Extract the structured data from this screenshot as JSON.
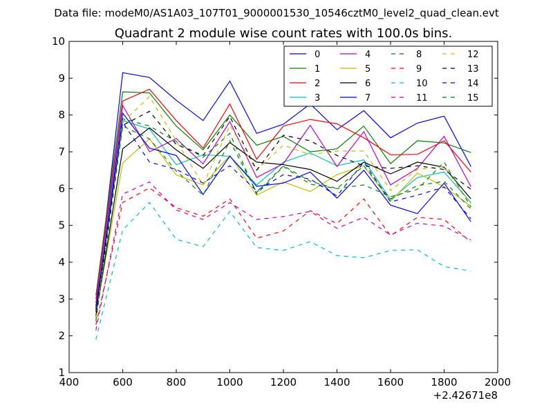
{
  "chart_data": {
    "type": "line",
    "suptitle": "Data file: modeM0/AS1A03_107T01_9000001530_10546cztM0_level2_quad_clean.evt",
    "title": "Quadrant 2 module wise count rates with 100.0s bins.",
    "xlabel": "",
    "ylabel": "",
    "x_offset_label": "+2.42671e8",
    "xlim": [
      400,
      2000
    ],
    "ylim": [
      1,
      10
    ],
    "xticks": [
      400,
      600,
      800,
      1000,
      1200,
      1400,
      1600,
      1800,
      2000
    ],
    "yticks": [
      1,
      2,
      3,
      4,
      5,
      6,
      7,
      8,
      9,
      10
    ],
    "grid": false,
    "legend_position": "top-right",
    "x": [
      500,
      600,
      700,
      800,
      900,
      1000,
      1100,
      1200,
      1300,
      1400,
      1500,
      1600,
      1700,
      1800,
      1900
    ],
    "series": [
      {
        "name": "0",
        "color": "#0000ff",
        "style": "solid",
        "values": [
          2.8,
          9.15,
          9.02,
          8.4,
          7.85,
          8.92,
          7.5,
          7.75,
          8.3,
          7.6,
          8.12,
          7.38,
          7.78,
          7.97,
          6.6
        ]
      },
      {
        "name": "1",
        "color": "#008000",
        "style": "solid",
        "values": [
          3.1,
          8.63,
          8.6,
          7.7,
          7.05,
          8.0,
          7.18,
          7.42,
          7.0,
          7.08,
          7.7,
          6.68,
          7.3,
          7.24,
          6.98
        ]
      },
      {
        "name": "2",
        "color": "#ff0000",
        "style": "solid",
        "values": [
          3.0,
          8.38,
          8.7,
          7.85,
          7.1,
          8.3,
          6.8,
          7.7,
          7.88,
          7.76,
          7.38,
          6.92,
          6.93,
          7.3,
          6.45
        ]
      },
      {
        "name": "3",
        "color": "#00bfbf",
        "style": "solid",
        "values": [
          2.7,
          7.85,
          7.62,
          6.65,
          6.92,
          6.88,
          6.1,
          6.72,
          6.97,
          6.62,
          6.78,
          5.7,
          6.3,
          6.45,
          5.62
        ]
      },
      {
        "name": "4",
        "color": "#bf00bf",
        "style": "solid",
        "values": [
          2.9,
          8.26,
          7.0,
          7.36,
          6.67,
          7.82,
          6.3,
          6.68,
          7.72,
          6.6,
          7.55,
          6.1,
          6.55,
          7.42,
          6.05
        ]
      },
      {
        "name": "5",
        "color": "#bfbf00",
        "style": "solid",
        "values": [
          2.6,
          6.7,
          7.35,
          6.37,
          6.1,
          6.9,
          5.82,
          6.18,
          5.92,
          6.38,
          6.62,
          5.65,
          6.42,
          6.05,
          5.52
        ]
      },
      {
        "name": "6",
        "color": "#000000",
        "style": "solid",
        "values": [
          2.55,
          7.08,
          7.65,
          7.05,
          6.55,
          7.25,
          6.72,
          6.65,
          6.52,
          6.2,
          6.72,
          6.4,
          6.72,
          6.58,
          5.72
        ]
      },
      {
        "name": "7",
        "color": "#0000ff",
        "style": "solid",
        "values": [
          2.7,
          8.05,
          7.1,
          6.9,
          5.84,
          6.88,
          6.06,
          6.15,
          6.45,
          5.74,
          6.5,
          5.55,
          5.32,
          6.15,
          5.1
        ]
      },
      {
        "name": "8",
        "color": "#008000",
        "style": "dashed",
        "values": [
          2.5,
          7.9,
          7.7,
          7.28,
          6.85,
          7.5,
          5.85,
          6.6,
          6.12,
          6.0,
          6.1,
          5.78,
          5.98,
          6.72,
          5.5
        ]
      },
      {
        "name": "9",
        "color": "#ff0000",
        "style": "dashed",
        "values": [
          2.3,
          5.62,
          6.02,
          5.48,
          5.25,
          5.72,
          4.65,
          4.85,
          5.4,
          5.05,
          5.72,
          4.72,
          5.22,
          5.16,
          4.55
        ]
      },
      {
        "name": "10",
        "color": "#00bfbf",
        "style": "dashed",
        "values": [
          1.9,
          4.88,
          5.62,
          4.62,
          4.42,
          5.38,
          4.4,
          4.32,
          4.56,
          4.18,
          4.12,
          4.32,
          4.34,
          3.88,
          3.76
        ]
      },
      {
        "name": "11",
        "color": "#bf00bf",
        "style": "dashed",
        "values": [
          2.15,
          5.85,
          6.18,
          5.42,
          5.16,
          5.62,
          5.16,
          5.24,
          5.38,
          4.92,
          5.22,
          4.74,
          5.06,
          4.98,
          4.6
        ]
      },
      {
        "name": "12",
        "color": "#bfbf00",
        "style": "dashed",
        "values": [
          2.45,
          7.8,
          8.5,
          7.3,
          6.1,
          7.72,
          6.5,
          7.18,
          6.92,
          7.02,
          7.02,
          5.95,
          6.52,
          6.6,
          5.58
        ]
      },
      {
        "name": "13",
        "color": "#000000",
        "style": "dashed",
        "values": [
          2.65,
          7.72,
          8.1,
          7.2,
          6.9,
          7.96,
          6.5,
          7.45,
          7.3,
          6.9,
          6.62,
          6.55,
          6.62,
          6.52,
          5.98
        ]
      },
      {
        "name": "14",
        "color": "#0000ff",
        "style": "dashed",
        "values": [
          2.75,
          7.8,
          6.72,
          6.52,
          6.15,
          6.62,
          5.94,
          6.38,
          6.26,
          5.8,
          6.72,
          5.64,
          5.82,
          6.04,
          5.18
        ]
      },
      {
        "name": "15",
        "color": "#008000",
        "style": "dashed",
        "values": [
          2.4,
          7.7,
          7.35,
          6.48,
          5.82,
          7.3,
          5.9,
          6.62,
          6.2,
          6.0,
          6.62,
          5.72,
          6.08,
          6.2,
          5.45
        ]
      }
    ]
  }
}
